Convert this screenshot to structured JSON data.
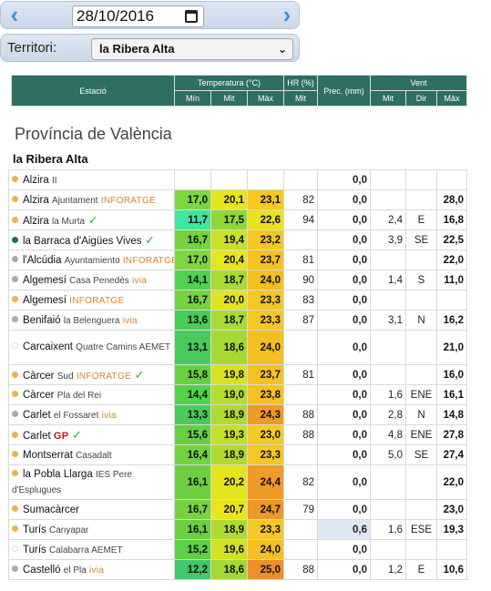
{
  "datebar": {
    "date": "28/10/2016",
    "prev_icon": "chevron-left-icon",
    "next_icon": "chevron-right-icon",
    "calendar_icon": "calendar-icon"
  },
  "territory": {
    "label": "Territori:",
    "selected": "la Ribera Alta"
  },
  "header": {
    "estacio": "Estació",
    "temperatura": "Temperatura (°C)",
    "hr": "HR (%)",
    "prec": "Prec. (mm)",
    "vent": "Vent",
    "min": "Mín",
    "mit": "Mit",
    "max": "Màx",
    "hr_mit": "Mit",
    "vent_mit": "Mit",
    "vent_dir": "Dir",
    "vent_max": "Màx"
  },
  "region": "Província de València",
  "comarca": "la Ribera Alta",
  "colors": {
    "header": "#2f6e62",
    "dot_orange": "#e8b64a",
    "dot_grey": "#aaaaaa",
    "dot_teal": "#1f6f66"
  },
  "stations": [
    {
      "name": "Alzira",
      "sub": "II",
      "brand": "",
      "dot": "#e8b64a",
      "check": false,
      "tall": false,
      "min": "",
      "mit": "",
      "max": "",
      "hr": "",
      "prec": "0,0",
      "vmit": "",
      "dir": "",
      "vmax": "",
      "cmin": "",
      "cmit": "",
      "cmax": ""
    },
    {
      "name": "Alzira",
      "sub": "Ajuntament",
      "brand": "INFORATGE",
      "dot": "#e8b64a",
      "check": false,
      "tall": false,
      "min": "17,0",
      "mit": "20,1",
      "max": "23,1",
      "hr": "82",
      "prec": "0,0",
      "vmit": "",
      "dir": "",
      "vmax": "28,0",
      "cmin": "#7ed63f",
      "cmit": "#e6e520",
      "cmax": "#f7c821"
    },
    {
      "name": "Alzira",
      "sub": "la Murta",
      "brand": "",
      "dot": "#e8b64a",
      "check": true,
      "tall": false,
      "min": "11,7",
      "mit": "17,5",
      "max": "22,6",
      "hr": "94",
      "prec": "0,0",
      "vmit": "2,4",
      "dir": "E",
      "vmax": "16,8",
      "cmin": "#3fe5a0",
      "cmit": "#8fd63a",
      "cmax": "#e9e21e"
    },
    {
      "name": "la Barraca d'Aigües Vives",
      "sub": "",
      "brand": "",
      "dot": "#1f6f66",
      "check": true,
      "tall": false,
      "min": "16,7",
      "mit": "19,4",
      "max": "23,2",
      "hr": "",
      "prec": "0,0",
      "vmit": "3,9",
      "dir": "SE",
      "vmax": "22,5",
      "cmin": "#76d23e",
      "cmit": "#c7e02a",
      "cmax": "#f4c824"
    },
    {
      "name": "l'Alcúdia",
      "sub": "Ayuntamiento",
      "brand": "INFORATGE",
      "dot": "#aaaaaa",
      "check": false,
      "tall": false,
      "min": "17,0",
      "mit": "20,4",
      "max": "23,7",
      "hr": "81",
      "prec": "0,0",
      "vmit": "",
      "dir": "",
      "vmax": "22,0",
      "cmin": "#7ed63f",
      "cmit": "#e6e520",
      "cmax": "#f6c222"
    },
    {
      "name": "Algemesí",
      "sub": "Casa Penedès",
      "brand": "ivia",
      "dot": "#aaaaaa",
      "check": false,
      "tall": false,
      "min": "14,1",
      "mit": "18,7",
      "max": "24,0",
      "hr": "90",
      "prec": "0,0",
      "vmit": "1,4",
      "dir": "S",
      "vmax": "11,0",
      "cmin": "#4fd24e",
      "cmit": "#a8d934",
      "cmax": "#f5be22"
    },
    {
      "name": "Algemesí",
      "sub": "",
      "brand": "INFORATGE",
      "dot": "#e8b64a",
      "check": false,
      "tall": false,
      "min": "16,7",
      "mit": "20,0",
      "max": "23,3",
      "hr": "83",
      "prec": "0,0",
      "vmit": "",
      "dir": "",
      "vmax": "",
      "cmin": "#76d23e",
      "cmit": "#e2e321",
      "cmax": "#f4c824"
    },
    {
      "name": "Benifaió",
      "sub": "la Belenguera",
      "brand": "ivia",
      "dot": "#aaaaaa",
      "check": false,
      "tall": false,
      "min": "13,6",
      "mit": "18,7",
      "max": "23,3",
      "hr": "87",
      "prec": "0,0",
      "vmit": "3,1",
      "dir": "N",
      "vmax": "16,2",
      "cmin": "#4acd55",
      "cmit": "#a8d934",
      "cmax": "#f4c824"
    },
    {
      "name": "Carcaixent",
      "sub": "Quatre Camins AEMET",
      "brand": "",
      "dot": "ring",
      "check": false,
      "tall": true,
      "min": "13,1",
      "mit": "18,6",
      "max": "24,0",
      "hr": "",
      "prec": "0,0",
      "vmit": "",
      "dir": "",
      "vmax": "21,0",
      "cmin": "#47cb5b",
      "cmit": "#a5d835",
      "cmax": "#f5be22"
    },
    {
      "name": "Càrcer",
      "sub": "Sud",
      "brand": "INFORATGE",
      "dot": "#e8b64a",
      "check": true,
      "tall": false,
      "min": "15,8",
      "mit": "19,8",
      "max": "23,7",
      "hr": "81",
      "prec": "0,0",
      "vmit": "",
      "dir": "",
      "vmax": "16,0",
      "cmin": "#68d040",
      "cmit": "#d8e124",
      "cmax": "#f6c222"
    },
    {
      "name": "Càrcer",
      "sub": "Pla del Rei",
      "brand": "",
      "dot": "#e8b64a",
      "check": false,
      "tall": false,
      "min": "14,4",
      "mit": "19,0",
      "max": "23,8",
      "hr": "",
      "prec": "0,0",
      "vmit": "1,6",
      "dir": "ENE",
      "vmax": "16,1",
      "cmin": "#52d24a",
      "cmit": "#b6dc2f",
      "cmax": "#f6c122"
    },
    {
      "name": "Carlet",
      "sub": "el Fossaret",
      "brand": "ivia",
      "dot": "#aaaaaa",
      "check": false,
      "tall": false,
      "min": "13,3",
      "mit": "18,9",
      "max": "24,3",
      "hr": "88",
      "prec": "0,0",
      "vmit": "2,8",
      "dir": "N",
      "vmax": "14,8",
      "cmin": "#48cc59",
      "cmit": "#b0da31",
      "cmax": "#f19a27"
    },
    {
      "name": "Carlet",
      "sub": "",
      "brand": "GP",
      "dot": "#e8b64a",
      "check": true,
      "tall": false,
      "min": "15,6",
      "mit": "19,3",
      "max": "23,0",
      "hr": "88",
      "prec": "0,0",
      "vmit": "4,8",
      "dir": "ENE",
      "vmax": "27,8",
      "cmin": "#66cf42",
      "cmit": "#c3df2b",
      "cmax": "#f3cb24"
    },
    {
      "name": "Montserrat",
      "sub": "Casadalt",
      "brand": "",
      "dot": "#e8b64a",
      "check": false,
      "tall": false,
      "min": "16,4",
      "mit": "18,9",
      "max": "23,3",
      "hr": "",
      "prec": "0,0",
      "vmit": "5,0",
      "dir": "SE",
      "vmax": "27,4",
      "cmin": "#72d23f",
      "cmit": "#b0da31",
      "cmax": "#f4c824"
    },
    {
      "name": "la Pobla Llarga",
      "sub": "IES Pere d'Esplugues",
      "brand": "",
      "dot": "#e8b64a",
      "check": false,
      "tall": true,
      "min": "16,1",
      "mit": "20,2",
      "max": "24,4",
      "hr": "82",
      "prec": "0,0",
      "vmit": "",
      "dir": "",
      "vmax": "22,0",
      "cmin": "#6ccf41",
      "cmit": "#e4e420",
      "cmax": "#f09a28"
    },
    {
      "name": "Sumacàrcer",
      "sub": "",
      "brand": "",
      "dot": "#e8b64a",
      "check": false,
      "tall": false,
      "min": "16,7",
      "mit": "20,7",
      "max": "24,7",
      "hr": "79",
      "prec": "0,0",
      "vmit": "",
      "dir": "",
      "vmax": "23,0",
      "cmin": "#76d23e",
      "cmit": "#eae41f",
      "cmax": "#ef9728"
    },
    {
      "name": "Turís",
      "sub": "Canyapar",
      "brand": "",
      "dot": "#e8b64a",
      "check": false,
      "tall": false,
      "min": "16,1",
      "mit": "18,9",
      "max": "23,3",
      "hr": "",
      "prec": "0,6",
      "vmit": "1,6",
      "dir": "ESE",
      "vmax": "19,3",
      "cmin": "#6ccf41",
      "cmit": "#b0da31",
      "cmax": "#f4c824",
      "prec_hl": true
    },
    {
      "name": "Turís",
      "sub": "Calabarra AEMET",
      "brand": "",
      "dot": "ring",
      "check": false,
      "tall": false,
      "min": "15,2",
      "mit": "19,6",
      "max": "24,0",
      "hr": "",
      "prec": "0,0",
      "vmit": "",
      "dir": "",
      "vmax": "",
      "cmin": "#5ed044",
      "cmit": "#d2e026",
      "cmax": "#f5be22"
    },
    {
      "name": "Castelló",
      "sub": "el Pla",
      "brand": "ivia",
      "dot": "#aaaaaa",
      "check": false,
      "tall": false,
      "min": "12,2",
      "mit": "18,6",
      "max": "25,0",
      "hr": "88",
      "prec": "0,0",
      "vmit": "1,2",
      "dir": "E",
      "vmax": "10,6",
      "cmin": "#42c86a",
      "cmit": "#a5d835",
      "cmax": "#ed9029"
    }
  ]
}
